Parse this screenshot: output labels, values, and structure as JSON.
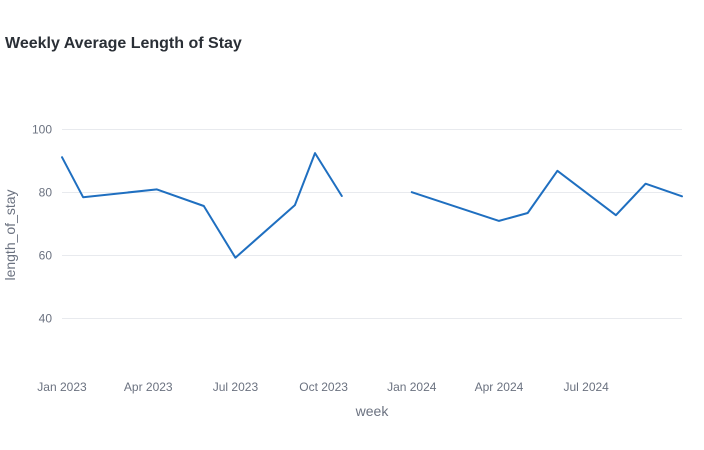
{
  "chart_data": {
    "type": "line",
    "title": "Weekly Average Length of Stay",
    "xlabel": "week",
    "ylabel": "length_of_stay",
    "x_ticks": [
      "2023-01-01",
      "2023-04-01",
      "2023-07-01",
      "2023-10-01",
      "2024-01-01",
      "2024-04-01",
      "2024-07-01"
    ],
    "x_tick_labels": [
      "Jan 2023",
      "Apr 2023",
      "Jul 2023",
      "Oct 2023",
      "Jan 2024",
      "Apr 2024",
      "Jul 2024"
    ],
    "y_ticks": [
      40,
      60,
      80,
      100
    ],
    "xlim": [
      "2023-01-01",
      "2024-10-09"
    ],
    "ylim": [
      30,
      110
    ],
    "grid": true,
    "color": "#1f6fc0",
    "series": [
      {
        "name": "",
        "points": [
          {
            "x": "2023-01-01",
            "y": 91.2
          },
          {
            "x": "2023-01-23",
            "y": 78.5
          },
          {
            "x": "2023-04-10",
            "y": 81.0
          },
          {
            "x": "2023-05-29",
            "y": 75.7
          },
          {
            "x": "2023-07-01",
            "y": 59.3
          },
          {
            "x": "2023-09-01",
            "y": 76.0
          },
          {
            "x": "2023-09-22",
            "y": 92.5
          },
          {
            "x": "2023-10-20",
            "y": 78.9
          },
          {
            "x": null,
            "y": null
          },
          {
            "x": "2024-01-01",
            "y": 80.1
          },
          {
            "x": "2024-04-01",
            "y": 71.0
          },
          {
            "x": "2024-05-01",
            "y": 73.5
          },
          {
            "x": "2024-06-01",
            "y": 86.9
          },
          {
            "x": "2024-08-01",
            "y": 72.8
          },
          {
            "x": "2024-09-01",
            "y": 82.8
          },
          {
            "x": "2024-10-09",
            "y": 78.8
          }
        ]
      }
    ]
  }
}
